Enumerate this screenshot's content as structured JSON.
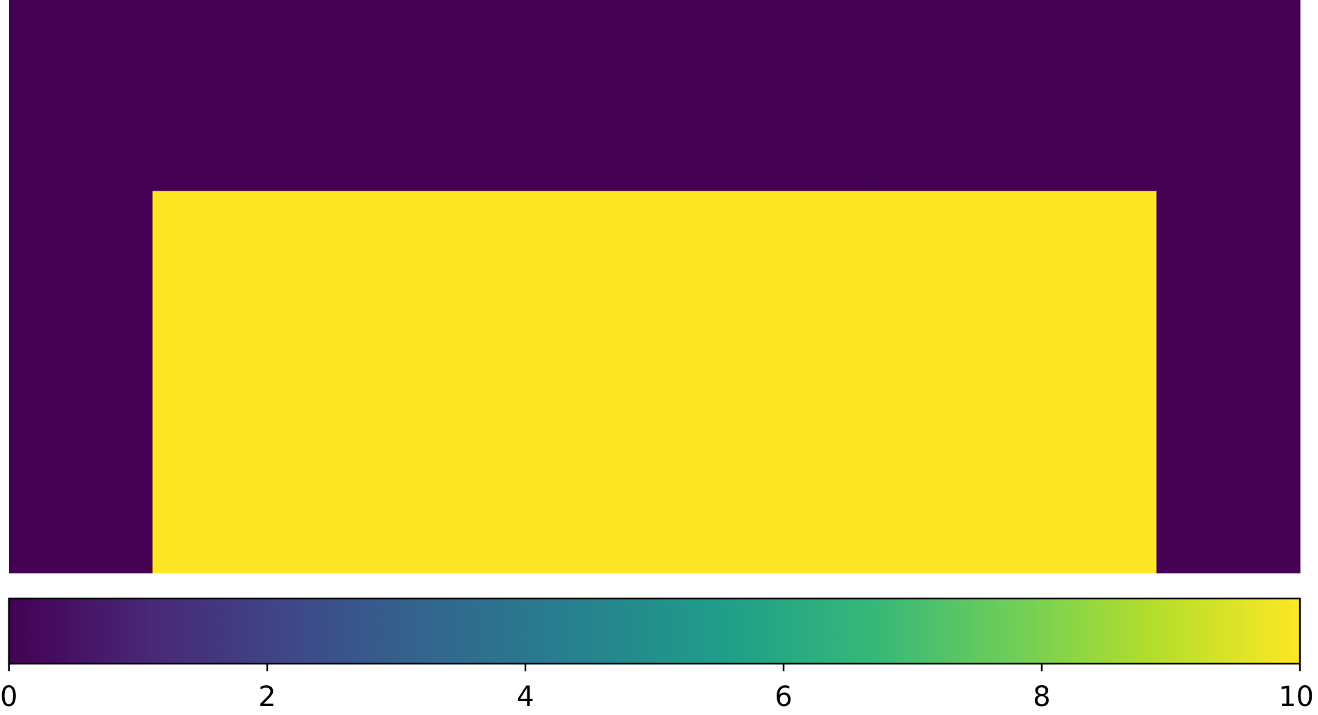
{
  "chart_data": {
    "type": "heatmap",
    "title": "",
    "xlabel": "",
    "ylabel": "",
    "grid": false,
    "colormap": "viridis",
    "rows": 3,
    "cols": 9,
    "values": [
      [
        0,
        0,
        0,
        0,
        0,
        0,
        0,
        0,
        0
      ],
      [
        0,
        10,
        10,
        10,
        10,
        10,
        10,
        10,
        0
      ],
      [
        0,
        10,
        10,
        10,
        10,
        10,
        10,
        10,
        0
      ]
    ],
    "colorbar": {
      "orientation": "horizontal",
      "range": [
        0,
        10
      ],
      "ticks": [
        0,
        2,
        4,
        6,
        8,
        10
      ],
      "tick_labels": [
        "0",
        "2",
        "4",
        "6",
        "8",
        "10"
      ]
    }
  },
  "colors": {
    "viridis_stops": [
      "#440154",
      "#482878",
      "#3e4989",
      "#31688e",
      "#26828e",
      "#1f9e89",
      "#35b779",
      "#6ece58",
      "#b5de2b",
      "#fde725"
    ]
  }
}
